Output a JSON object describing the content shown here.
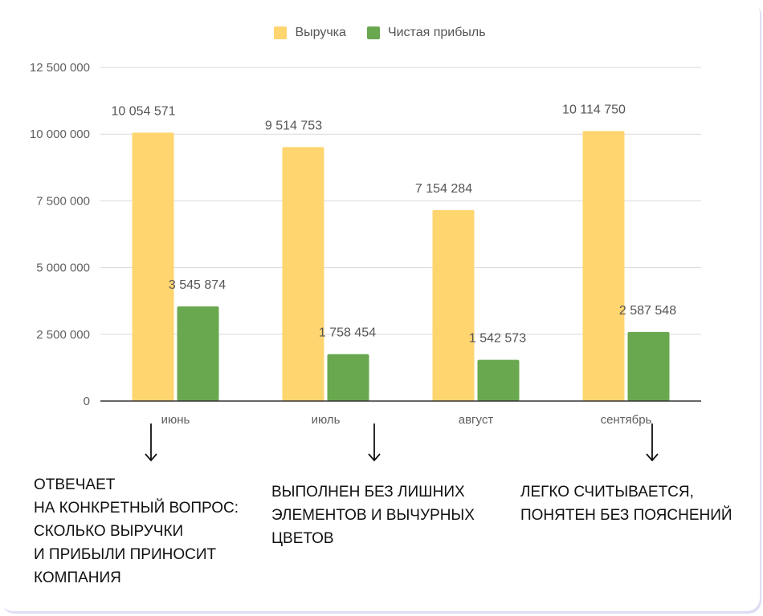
{
  "chart_data": {
    "type": "bar",
    "categories": [
      "июнь",
      "июль",
      "август",
      "сентябрь"
    ],
    "series": [
      {
        "name": "Выручка",
        "values": [
          10054571,
          9514753,
          7154284,
          10114750
        ],
        "labels": [
          "10 054 571",
          "9 514 753",
          "7 154 284",
          "10 114 750"
        ],
        "color": "#FFD56F"
      },
      {
        "name": "Чистая прибыль",
        "values": [
          3545874,
          1758454,
          1542573,
          2587548
        ],
        "labels": [
          "3 545 874",
          "1 758 454",
          "1 542 573",
          "2 587 548"
        ],
        "color": "#6AA84F"
      }
    ],
    "yticks": [
      0,
      2500000,
      5000000,
      7500000,
      10000000,
      12500000
    ],
    "ytick_labels": [
      "0",
      "2 500 000",
      "5 000 000",
      "7 500 000",
      "10 000 000",
      "12 500 000"
    ],
    "ylim": [
      0,
      12500000
    ],
    "grid": true,
    "legend": "top-center",
    "colors": {
      "grid": "#d9d9d9",
      "axis": "#333333",
      "text": "#5f5f5f"
    }
  },
  "notes": [
    {
      "lines": [
        "ОТВЕЧАЕТ",
        "НА КОНКРЕТНЫЙ ВОПРОС:",
        "СКОЛЬКО ВЫРУЧКИ",
        "И ПРИБЫЛИ ПРИНОСИТ",
        "КОМПАНИЯ"
      ]
    },
    {
      "lines": [
        "ВЫПОЛНЕН БЕЗ ЛИШНИХ",
        "ЭЛЕМЕНТОВ И ВЫЧУРНЫХ",
        "ЦВЕТОВ"
      ]
    },
    {
      "lines": [
        "ЛЕГКО СЧИТЫВАЕТСЯ,",
        "ПОНЯТЕН БЕЗ ПОЯСНЕНИЙ"
      ]
    }
  ]
}
